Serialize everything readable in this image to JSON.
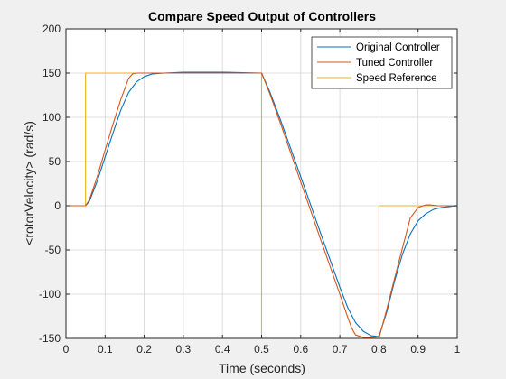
{
  "chart_data": {
    "type": "line",
    "title": "Compare Speed Output of Controllers",
    "xlabel": "Time (seconds)",
    "ylabel": "<rotorVelocity> (rad/s)",
    "xlim": [
      0,
      1
    ],
    "ylim": [
      -150,
      200
    ],
    "xticks": [
      0,
      0.1,
      0.2,
      0.3,
      0.4,
      0.5,
      0.6,
      0.7,
      0.8,
      0.9,
      1
    ],
    "xtick_labels": [
      "0",
      "0.1",
      "0.2",
      "0.3",
      "0.4",
      "0.5",
      "0.6",
      "0.7",
      "0.8",
      "0.9",
      "1"
    ],
    "yticks": [
      -150,
      -100,
      -50,
      0,
      50,
      100,
      150,
      200
    ],
    "ytick_labels": [
      "-150",
      "-100",
      "-50",
      "0",
      "50",
      "100",
      "150",
      "200"
    ],
    "grid": true,
    "legend_position": "top-right",
    "series": [
      {
        "name": "Original Controller",
        "color": "#0072BD",
        "x": [
          0,
          0.05,
          0.06,
          0.08,
          0.1,
          0.12,
          0.14,
          0.16,
          0.18,
          0.2,
          0.22,
          0.25,
          0.3,
          0.4,
          0.5,
          0.52,
          0.55,
          0.6,
          0.65,
          0.7,
          0.72,
          0.74,
          0.76,
          0.78,
          0.8,
          0.82,
          0.84,
          0.86,
          0.88,
          0.9,
          0.92,
          0.94,
          0.96,
          0.98,
          1.0
        ],
        "y": [
          0,
          0,
          5,
          28,
          55,
          82,
          108,
          128,
          140,
          146,
          149,
          150,
          151,
          151,
          150,
          130,
          95,
          33,
          -30,
          -92,
          -115,
          -132,
          -142,
          -147,
          -148,
          -120,
          -85,
          -55,
          -32,
          -17,
          -9,
          -4,
          -2,
          -1,
          0
        ]
      },
      {
        "name": "Tuned Controller",
        "color": "#D95319",
        "x": [
          0,
          0.05,
          0.06,
          0.08,
          0.1,
          0.12,
          0.14,
          0.16,
          0.17,
          0.18,
          0.2,
          0.25,
          0.3,
          0.4,
          0.5,
          0.52,
          0.55,
          0.6,
          0.65,
          0.7,
          0.72,
          0.73,
          0.74,
          0.76,
          0.78,
          0.8,
          0.82,
          0.84,
          0.86,
          0.88,
          0.9,
          0.92,
          0.93,
          0.95,
          1.0
        ],
        "y": [
          0,
          0,
          7,
          33,
          63,
          92,
          120,
          144,
          149,
          150,
          150,
          150,
          150,
          150,
          150,
          128,
          91,
          27,
          -37,
          -100,
          -126,
          -138,
          -146,
          -149,
          -149.5,
          -150,
          -117,
          -82,
          -48,
          -14,
          -2,
          1,
          1,
          0,
          0
        ]
      },
      {
        "name": "Speed Reference",
        "color": "#EDB120",
        "x": [
          0,
          0.05,
          0.05,
          0.5,
          0.5,
          0.8,
          0.8,
          1.0
        ],
        "y": [
          0,
          0,
          150,
          150,
          -150,
          -150,
          0,
          0
        ]
      }
    ]
  }
}
